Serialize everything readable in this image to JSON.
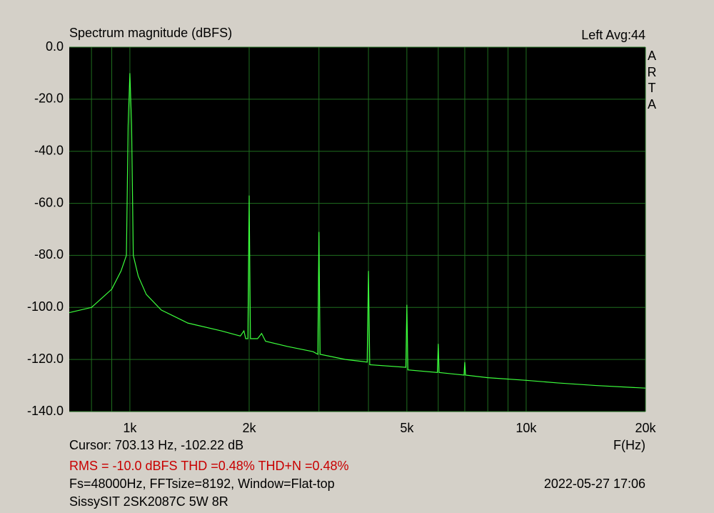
{
  "chart_data": {
    "type": "line",
    "title": "Spectrum magnitude (dBFS)",
    "channel_info": "Left  Avg:44",
    "brand": "ARTA",
    "x_label": "F(Hz)",
    "log_x": true,
    "grid": true,
    "background": "#000000",
    "grid_color": "#1f6e1f",
    "xlim": [
      703.13,
      20000
    ],
    "xticks": [
      {
        "value": 1000,
        "label": "1k"
      },
      {
        "value": 2000,
        "label": "2k"
      },
      {
        "value": 5000,
        "label": "5k"
      },
      {
        "value": 10000,
        "label": "10k"
      },
      {
        "value": 20000,
        "label": "20k"
      }
    ],
    "xminor": [
      800,
      900,
      3000,
      4000,
      6000,
      7000,
      8000,
      9000
    ],
    "ylim": [
      -140,
      0
    ],
    "yticks": [
      {
        "value": 0,
        "label": "0.0"
      },
      {
        "value": -20,
        "label": "-20.0"
      },
      {
        "value": -40,
        "label": "-40.0"
      },
      {
        "value": -60,
        "label": "-60.0"
      },
      {
        "value": -80,
        "label": "-80.0"
      },
      {
        "value": -100,
        "label": "-100.0"
      },
      {
        "value": -120,
        "label": "-120.0"
      },
      {
        "value": -140,
        "label": "-140.0"
      }
    ],
    "series": [
      {
        "name": "Left",
        "color": "#3cff3c",
        "x": [
          703,
          800,
          900,
          950,
          980,
          990,
          1000,
          1010,
          1020,
          1050,
          1100,
          1200,
          1400,
          1700,
          1900,
          1940,
          1960,
          1985,
          2000,
          2015,
          2100,
          2150,
          2200,
          2500,
          2900,
          2980,
          3000,
          3020,
          3500,
          3970,
          4000,
          4030,
          4970,
          5000,
          5030,
          5970,
          6000,
          6030,
          6970,
          7000,
          7030,
          8000,
          10000,
          12000,
          15000,
          20000
        ],
        "values": [
          -102,
          -100,
          -93,
          -86,
          -80,
          -30,
          -10,
          -30,
          -80,
          -88,
          -95,
          -101,
          -106,
          -109,
          -111,
          -109,
          -112,
          -112,
          -57,
          -112,
          -112,
          -110,
          -113,
          -115,
          -117,
          -118,
          -71,
          -118,
          -120,
          -121,
          -86,
          -122,
          -123,
          -99,
          -124,
          -125,
          -114,
          -125,
          -126,
          -121,
          -126,
          -127,
          -128,
          -129,
          -130,
          -131
        ]
      }
    ]
  },
  "cursor": "Cursor: 703.13 Hz, -102.22 dB",
  "measurements": "RMS =  -10.0 dBFS  THD =0.48%  THD+N =0.48%",
  "settings": "Fs=48000Hz, FFTsize=8192, Window=Flat-top",
  "timestamp": "2022-05-27  17:06",
  "device": "SissySIT 2SK2087C 5W 8R"
}
